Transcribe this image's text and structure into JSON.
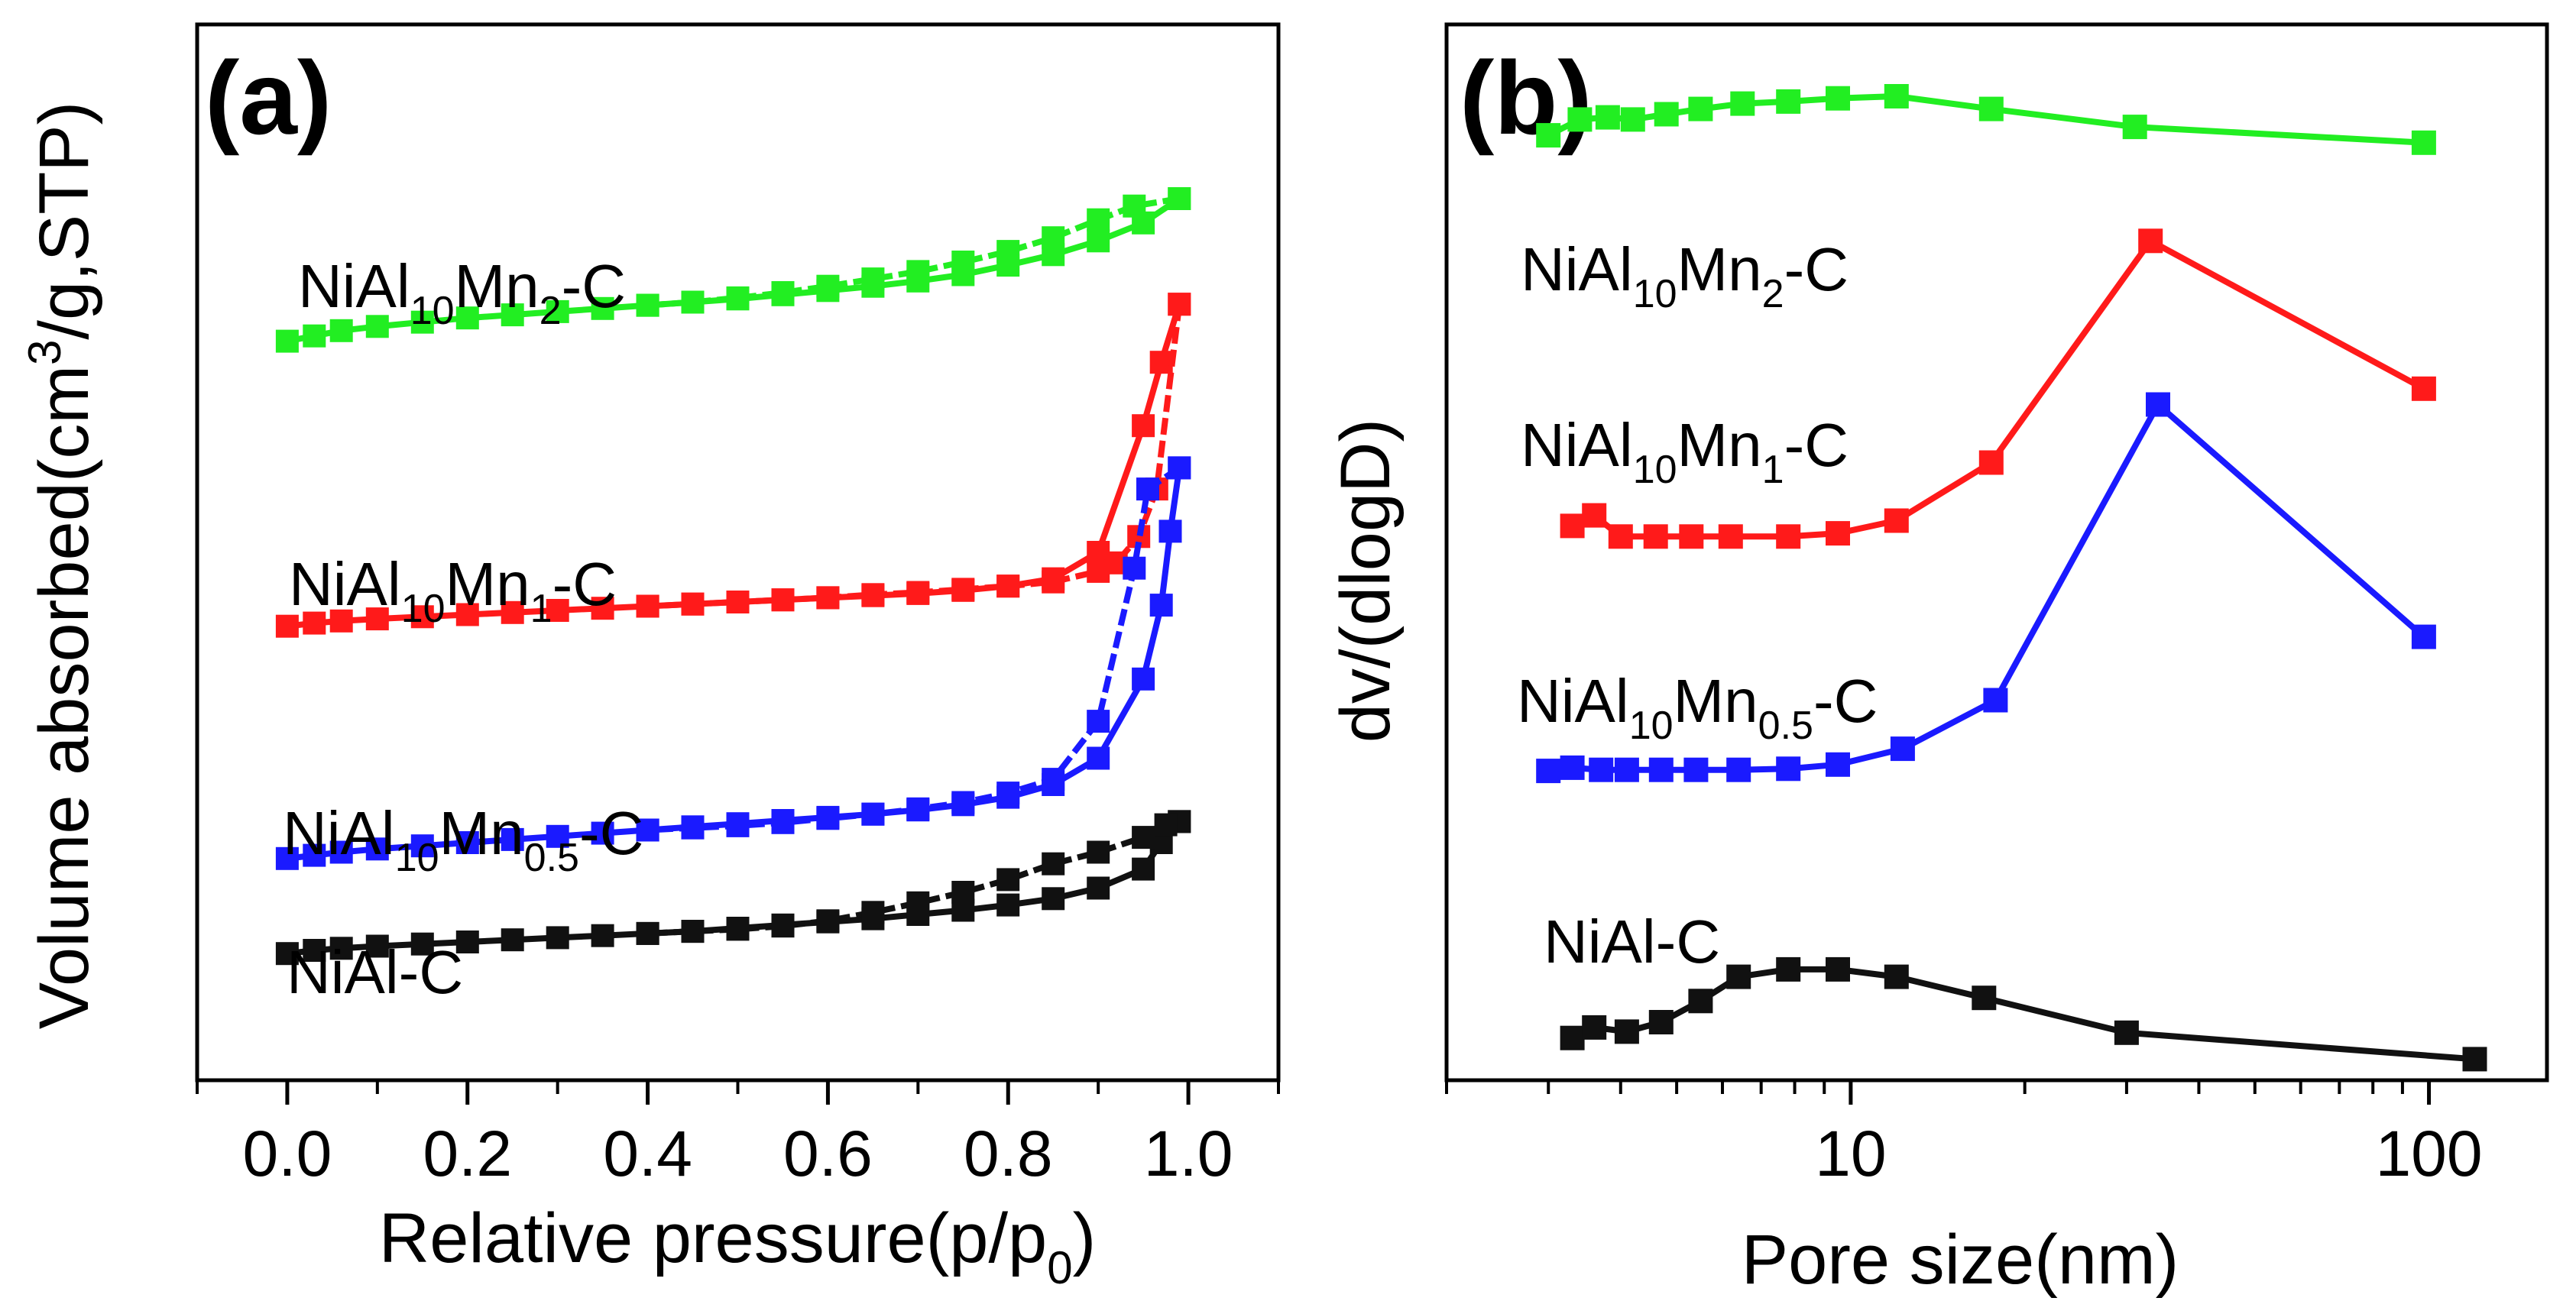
{
  "chart_data": [
    {
      "type": "line",
      "panel": "(a)",
      "xlabel": "Relative pressure(p/p0)",
      "ylabel": "Volume absorbed(cm3/g,STP)",
      "xlim": [
        -0.1,
        1.1
      ],
      "x_ticks": [
        "0.0",
        "0.2",
        "0.4",
        "0.6",
        "0.8",
        "1.0"
      ],
      "y_ticks": [],
      "series": [
        {
          "name": "NiAl10Mn2-C",
          "color": "#22ee22",
          "label_parts": [
            [
              "NiAl",
              ""
            ],
            [
              "10",
              "sub"
            ],
            [
              "Mn",
              ""
            ],
            [
              "2",
              "sub"
            ],
            [
              "-C",
              ""
            ]
          ],
          "adsorption": {
            "x": [
              0.0,
              0.03,
              0.06,
              0.1,
              0.15,
              0.2,
              0.25,
              0.3,
              0.35,
              0.4,
              0.45,
              0.5,
              0.55,
              0.6,
              0.65,
              0.7,
              0.75,
              0.8,
              0.85,
              0.9,
              0.95,
              0.99
            ],
            "y": [
              70.0,
              70.5,
              71.0,
              71.4,
              71.8,
              72.2,
              72.5,
              72.8,
              73.1,
              73.4,
              73.7,
              74.0,
              74.4,
              74.8,
              75.2,
              75.7,
              76.3,
              77.2,
              78.2,
              79.5,
              81.2,
              83.5
            ]
          },
          "desorption": {
            "x": [
              0.99,
              0.94,
              0.9,
              0.85,
              0.8,
              0.75,
              0.7,
              0.65,
              0.6,
              0.55,
              0.5,
              0.45,
              0.4
            ],
            "y": [
              83.5,
              82.8,
              81.5,
              79.8,
              78.5,
              77.5,
              76.6,
              75.9,
              75.2,
              74.6,
              74.1,
              73.7,
              73.4
            ]
          }
        },
        {
          "name": "NiAl10Mn1-C",
          "color": "#ff1a1a",
          "label_parts": [
            [
              "NiAl",
              ""
            ],
            [
              "10",
              "sub"
            ],
            [
              "Mn",
              ""
            ],
            [
              "1",
              "sub"
            ],
            [
              "-C",
              ""
            ]
          ],
          "adsorption": {
            "x": [
              0.0,
              0.03,
              0.06,
              0.1,
              0.15,
              0.2,
              0.25,
              0.3,
              0.35,
              0.4,
              0.45,
              0.5,
              0.55,
              0.6,
              0.65,
              0.7,
              0.75,
              0.8,
              0.85,
              0.9,
              0.95,
              0.97,
              0.99
            ],
            "y": [
              43.0,
              43.3,
              43.5,
              43.7,
              43.9,
              44.1,
              44.3,
              44.5,
              44.7,
              44.9,
              45.1,
              45.3,
              45.5,
              45.7,
              45.9,
              46.1,
              46.4,
              46.8,
              47.5,
              50.0,
              62.0,
              68.0,
              73.5
            ]
          },
          "desorption": {
            "x": [
              0.99,
              0.965,
              0.945,
              0.92,
              0.9,
              0.85,
              0.8,
              0.75,
              0.7,
              0.65,
              0.6,
              0.55,
              0.5,
              0.45,
              0.4
            ],
            "y": [
              73.5,
              56.0,
              51.5,
              49.0,
              48.2,
              47.2,
              46.8,
              46.5,
              46.2,
              46.0,
              45.7,
              45.5,
              45.3,
              45.1,
              44.9
            ]
          }
        },
        {
          "name": "NiAl10Mn0.5-C",
          "color": "#1a1aff",
          "label_parts": [
            [
              "NiAl",
              ""
            ],
            [
              "10",
              "sub"
            ],
            [
              "Mn",
              ""
            ],
            [
              "0.5",
              "sub"
            ],
            [
              "-C",
              ""
            ]
          ],
          "adsorption": {
            "x": [
              0.0,
              0.03,
              0.06,
              0.1,
              0.15,
              0.2,
              0.25,
              0.3,
              0.35,
              0.4,
              0.45,
              0.5,
              0.55,
              0.6,
              0.65,
              0.7,
              0.75,
              0.8,
              0.85,
              0.9,
              0.95,
              0.97,
              0.98,
              0.99
            ],
            "y": [
              21.0,
              21.3,
              21.6,
              21.9,
              22.2,
              22.5,
              22.8,
              23.1,
              23.4,
              23.7,
              24.0,
              24.3,
              24.6,
              24.9,
              25.2,
              25.6,
              26.1,
              26.8,
              28.0,
              30.5,
              38.0,
              45.0,
              52.0,
              58.0
            ]
          },
          "desorption": {
            "x": [
              0.99,
              0.955,
              0.94,
              0.9,
              0.85,
              0.8,
              0.75,
              0.7,
              0.65,
              0.6,
              0.55,
              0.5,
              0.45,
              0.4
            ],
            "y": [
              58.0,
              56.0,
              48.5,
              34.0,
              28.5,
              27.2,
              26.3,
              25.7,
              25.2,
              24.8,
              24.4,
              24.1,
              23.9,
              23.7
            ]
          }
        },
        {
          "name": "NiAl-C",
          "color": "#111111",
          "label_parts": [
            [
              "NiAl-C",
              ""
            ]
          ],
          "adsorption": {
            "x": [
              0.0,
              0.03,
              0.06,
              0.1,
              0.15,
              0.2,
              0.25,
              0.3,
              0.35,
              0.4,
              0.45,
              0.5,
              0.55,
              0.6,
              0.65,
              0.7,
              0.75,
              0.8,
              0.85,
              0.9,
              0.95,
              0.97,
              0.99
            ],
            "y": [
              12.0,
              12.3,
              12.5,
              12.7,
              12.9,
              13.1,
              13.3,
              13.5,
              13.7,
              13.9,
              14.1,
              14.4,
              14.7,
              15.0,
              15.3,
              15.7,
              16.1,
              16.6,
              17.2,
              18.2,
              20.0,
              22.5,
              24.5
            ]
          },
          "desorption": {
            "x": [
              0.99,
              0.975,
              0.95,
              0.9,
              0.85,
              0.8,
              0.75,
              0.7,
              0.65,
              0.6,
              0.55,
              0.5,
              0.45,
              0.4
            ],
            "y": [
              24.5,
              24.2,
              23.0,
              21.6,
              20.5,
              19.0,
              17.8,
              16.8,
              15.9,
              15.1,
              14.6,
              14.3,
              14.1,
              13.9
            ]
          }
        }
      ]
    },
    {
      "type": "line",
      "panel": "(b)",
      "xlabel": "Pore size(nm)",
      "ylabel": "dv/(dlogD)",
      "xscale": "log",
      "xlim": [
        2,
        160
      ],
      "x_ticks": [
        "10",
        "100"
      ],
      "x_tick_values": [
        10,
        100
      ],
      "y_ticks": [],
      "series": [
        {
          "name": "NiAl10Mn2-C",
          "color": "#22ee22",
          "label_parts": [
            [
              "NiAl",
              ""
            ],
            [
              "10",
              "sub"
            ],
            [
              "Mn",
              ""
            ],
            [
              "2",
              "sub"
            ],
            [
              "-C",
              ""
            ]
          ],
          "x": [
            3.0,
            3.4,
            3.8,
            4.2,
            4.8,
            5.5,
            6.5,
            7.8,
            9.5,
            12.0,
            17.5,
            31.0,
            98.0
          ],
          "y": [
            89.5,
            91.0,
            91.2,
            91.0,
            91.5,
            92.0,
            92.5,
            92.7,
            93.0,
            93.2,
            92.0,
            90.3,
            88.8
          ]
        },
        {
          "name": "NiAl10Mn1-C",
          "color": "#ff1a1a",
          "label_parts": [
            [
              "NiAl",
              ""
            ],
            [
              "10",
              "sub"
            ],
            [
              "Mn",
              ""
            ],
            [
              "1",
              "sub"
            ],
            [
              "-C",
              ""
            ]
          ],
          "x": [
            3.3,
            3.6,
            4.0,
            4.6,
            5.3,
            6.2,
            7.8,
            9.5,
            12.0,
            17.5,
            33.0,
            98.0
          ],
          "y": [
            52.5,
            53.5,
            51.5,
            51.5,
            51.5,
            51.5,
            51.5,
            51.8,
            53.0,
            58.5,
            79.5,
            65.5
          ]
        },
        {
          "name": "NiAl10Mn0.5-C",
          "color": "#1a1aff",
          "label_parts": [
            [
              "NiAl",
              ""
            ],
            [
              "10",
              "sub"
            ],
            [
              "Mn",
              ""
            ],
            [
              "0.5",
              "sub"
            ],
            [
              "-C",
              ""
            ]
          ],
          "x": [
            3.0,
            3.3,
            3.7,
            4.1,
            4.7,
            5.4,
            6.4,
            7.8,
            9.5,
            12.3,
            17.8,
            34.0,
            98.0
          ],
          "y": [
            29.3,
            29.6,
            29.4,
            29.4,
            29.4,
            29.4,
            29.4,
            29.5,
            29.9,
            31.4,
            36.0,
            64.0,
            42.0
          ]
        },
        {
          "name": "NiAl-C",
          "color": "#111111",
          "label_parts": [
            [
              "NiAl-C",
              ""
            ]
          ],
          "x": [
            3.3,
            3.6,
            4.1,
            4.7,
            5.5,
            6.4,
            7.8,
            9.5,
            12.0,
            17.0,
            30.0,
            120.0
          ],
          "y": [
            4.0,
            5.0,
            4.6,
            5.5,
            7.5,
            9.8,
            10.5,
            10.5,
            9.8,
            7.8,
            4.5,
            2.0
          ]
        }
      ]
    }
  ],
  "panels": {
    "a": {
      "tag": "(a)",
      "xlabel_main": "Relative pressure(p/p",
      "xlabel_sub": "0",
      "xlabel_tail": ")",
      "ylabel_main": "Volume absorbed(cm",
      "ylabel_sup": "3",
      "ylabel_tail": "/g,STP)"
    },
    "b": {
      "tag": "(b)",
      "xlabel": "Pore size(nm)",
      "ylabel": "dv/(dlogD)"
    }
  }
}
